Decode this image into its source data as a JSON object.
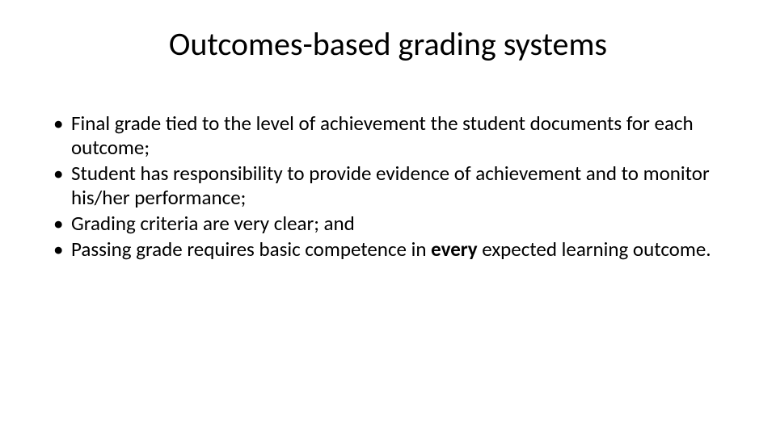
{
  "slide": {
    "title": "Outcomes-based grading systems",
    "title_fontsize": 40,
    "body_fontsize": 25,
    "background_color": "#ffffff",
    "text_color": "#000000",
    "bullets": [
      {
        "text": "Final grade tied to the level of achievement the student documents for each outcome;"
      },
      {
        "text": "Student has responsibility to provide evidence of achievement and to monitor his/her performance;"
      },
      {
        "text": "Grading criteria are very clear; and"
      },
      {
        "pre": "Passing grade requires basic competence in ",
        "bold": "every",
        "post": " expected learning outcome."
      }
    ]
  }
}
